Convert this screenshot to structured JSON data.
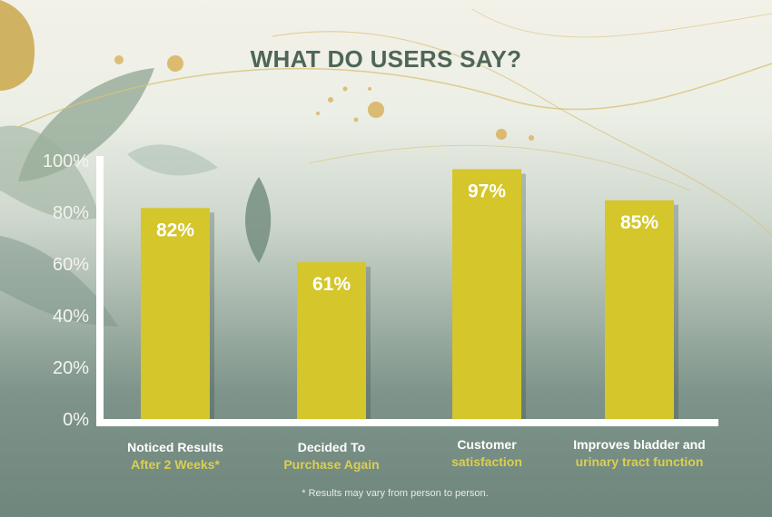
{
  "chart_data": {
    "type": "bar",
    "title": "WHAT DO USERS SAY?",
    "categories": [
      {
        "line1": "Noticed Results",
        "line2": "After 2 Weeks*"
      },
      {
        "line1": "Decided To",
        "line2": "Purchase Again"
      },
      {
        "line1": "Customer",
        "line2": "satisfaction"
      },
      {
        "line1": "Improves bladder and",
        "line2": "urinary tract function"
      }
    ],
    "values": [
      82,
      61,
      97,
      85
    ],
    "value_labels": [
      "82%",
      "61%",
      "97%",
      "85%"
    ],
    "yticks": [
      "0%",
      "20%",
      "40%",
      "60%",
      "80%",
      "100%"
    ],
    "ylim": [
      0,
      100
    ],
    "xlabel": "",
    "ylabel": "",
    "grid": false,
    "legend": null
  },
  "footnote": "*  Results may vary from person to person.",
  "colors": {
    "bar": "#d4c62b",
    "axis": "#ffffff",
    "title": "#4f6656",
    "highlight_text": "#d9cf52"
  }
}
